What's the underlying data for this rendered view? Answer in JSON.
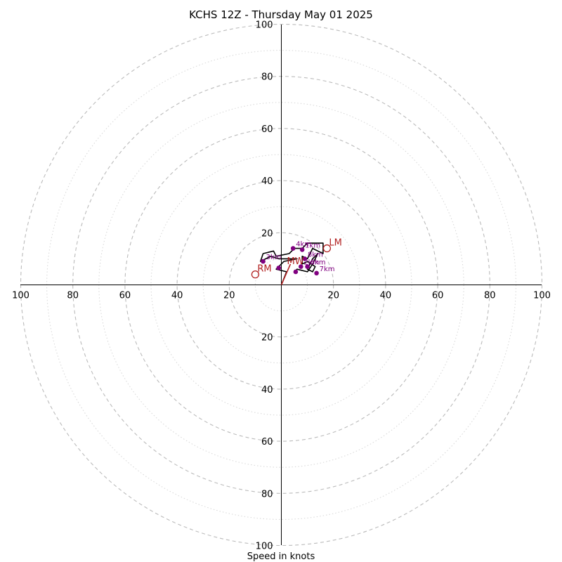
{
  "chart_data": {
    "type": "hodograph",
    "title": "KCHS 12Z - Thursday May 01 2025",
    "xlabel": "Speed in knots",
    "max_speed": 100,
    "major_ring_step": 20,
    "minor_ring_step": 10,
    "axis_tick_labels": [
      "100",
      "80",
      "60",
      "40",
      "20",
      "20",
      "40",
      "60",
      "80",
      "100"
    ],
    "y_tick_labels_upper": [
      "100",
      "80",
      "60",
      "40",
      "20"
    ],
    "y_tick_labels_lower": [
      "20",
      "40",
      "60",
      "80",
      "100"
    ],
    "colors": {
      "trace": "#000000",
      "height_markers": "#800080",
      "motion": "#b22222",
      "rings": "#bbbbbb"
    },
    "wind_trace": [
      [
        0,
        0
      ],
      [
        2,
        5
      ],
      [
        -2,
        6
      ],
      [
        1,
        9
      ],
      [
        6,
        10
      ],
      [
        -1,
        10
      ],
      [
        -4,
        11
      ],
      [
        -8,
        9
      ],
      [
        -7,
        12
      ],
      [
        -3,
        13
      ],
      [
        -2,
        11
      ],
      [
        3,
        12
      ],
      [
        5,
        14
      ],
      [
        8,
        14
      ],
      [
        10,
        16
      ],
      [
        16,
        16
      ],
      [
        16,
        12
      ],
      [
        12,
        14
      ],
      [
        10,
        10
      ],
      [
        8,
        11
      ],
      [
        8,
        8
      ],
      [
        10,
        9
      ],
      [
        13,
        7
      ],
      [
        12,
        5
      ],
      [
        10,
        6
      ],
      [
        12,
        10
      ],
      [
        14,
        12
      ],
      [
        12,
        8
      ],
      [
        10,
        5
      ],
      [
        6,
        6
      ],
      [
        5,
        5
      ]
    ],
    "height_markers": [
      {
        "x": -7,
        "y": 9,
        "label": "3km"
      },
      {
        "x": 4.5,
        "y": 14,
        "label": "4km"
      },
      {
        "x": 8,
        "y": 13.5,
        "label": "1km"
      },
      {
        "x": 9,
        "y": 10,
        "label": "8km"
      },
      {
        "x": 10,
        "y": 7,
        "label": "6km"
      },
      {
        "x": 7.5,
        "y": 7,
        "label": "2km"
      },
      {
        "x": 13.5,
        "y": 4.5,
        "label": "7km"
      },
      {
        "x": 5.5,
        "y": 5,
        "label": ""
      },
      {
        "x": -1,
        "y": 6.5,
        "label": ""
      }
    ],
    "storm_motions": [
      {
        "label": "RM",
        "x": -10,
        "y": 4
      },
      {
        "label": "LM",
        "x": 17.5,
        "y": 14
      },
      {
        "label": "MW",
        "x": 3.5,
        "y": 8
      }
    ],
    "motion_vector": {
      "x": 3.5,
      "y": 8
    }
  }
}
